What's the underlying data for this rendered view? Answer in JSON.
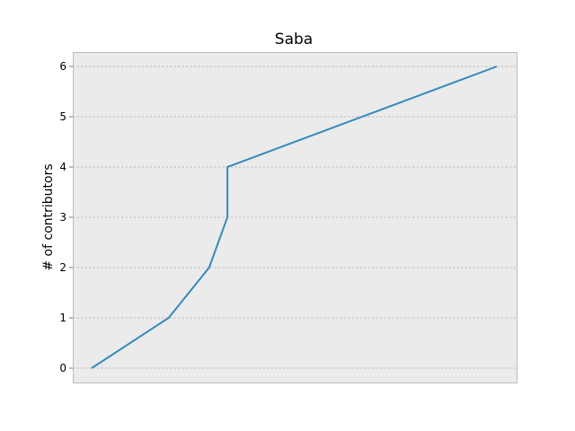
{
  "chart_data": {
    "type": "line",
    "title": "Saba",
    "xlabel": "",
    "ylabel": "# of contributors",
    "x_tick_labels_visible": false,
    "grid": true,
    "background": "#ebebeb",
    "line_color": "#348abd",
    "grid_color": "#b0b0b0",
    "ylim": [
      -0.3,
      6.3
    ],
    "yticks": [
      0,
      1,
      2,
      3,
      4,
      5,
      6
    ],
    "series": [
      {
        "x": [
          0.0,
          0.19,
          0.29,
          0.335,
          0.335,
          1.0
        ],
        "values": [
          0,
          1,
          2,
          3,
          4,
          6
        ]
      }
    ]
  }
}
